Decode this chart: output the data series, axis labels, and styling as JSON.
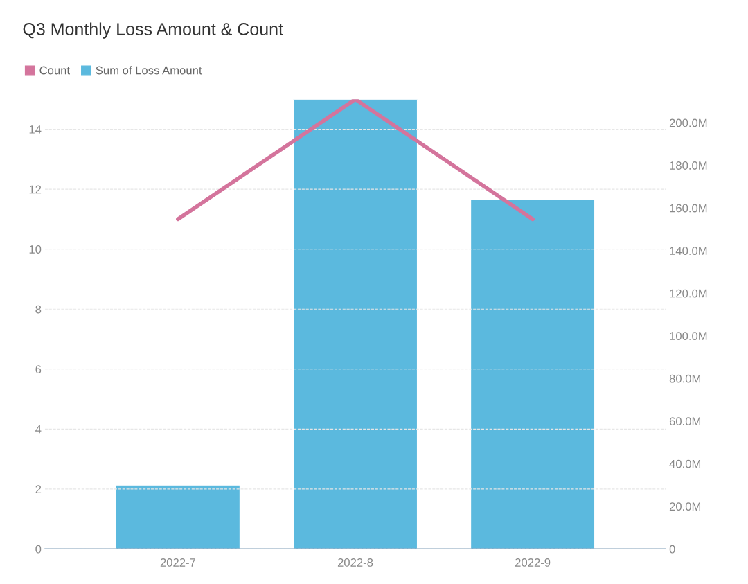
{
  "chart_data": {
    "type": "bar",
    "title": "Q3 Monthly Loss Amount & Count",
    "categories": [
      "2022-7",
      "2022-8",
      "2022-9"
    ],
    "series": [
      {
        "name": "Count",
        "type": "line",
        "color": "#d4749c",
        "values": [
          11,
          15,
          11
        ]
      },
      {
        "name": "Sum of Loss Amount",
        "axis": "y2",
        "color": "#5bb9de",
        "values": [
          30,
          211,
          164
        ]
      }
    ],
    "ylim": [
      0,
      15
    ],
    "yticks": [
      0,
      2,
      4,
      6,
      8,
      10,
      12,
      14
    ],
    "y2lim": [
      0,
      211
    ],
    "y2ticks": [
      {
        "value": 0,
        "label": "0"
      },
      {
        "value": 20,
        "label": "20.0M"
      },
      {
        "value": 40,
        "label": "40.0M"
      },
      {
        "value": 60,
        "label": "60.0M"
      },
      {
        "value": 80,
        "label": "80.0M"
      },
      {
        "value": 100,
        "label": "100.0M"
      },
      {
        "value": 120,
        "label": "120.0M"
      },
      {
        "value": 140,
        "label": "140.0M"
      },
      {
        "value": 160,
        "label": "160.0M"
      },
      {
        "value": 180,
        "label": "180.0M"
      },
      {
        "value": 200,
        "label": "200.0M"
      }
    ],
    "grid": "y",
    "legend": "top left",
    "marker": "none",
    "line_style": "solid"
  }
}
